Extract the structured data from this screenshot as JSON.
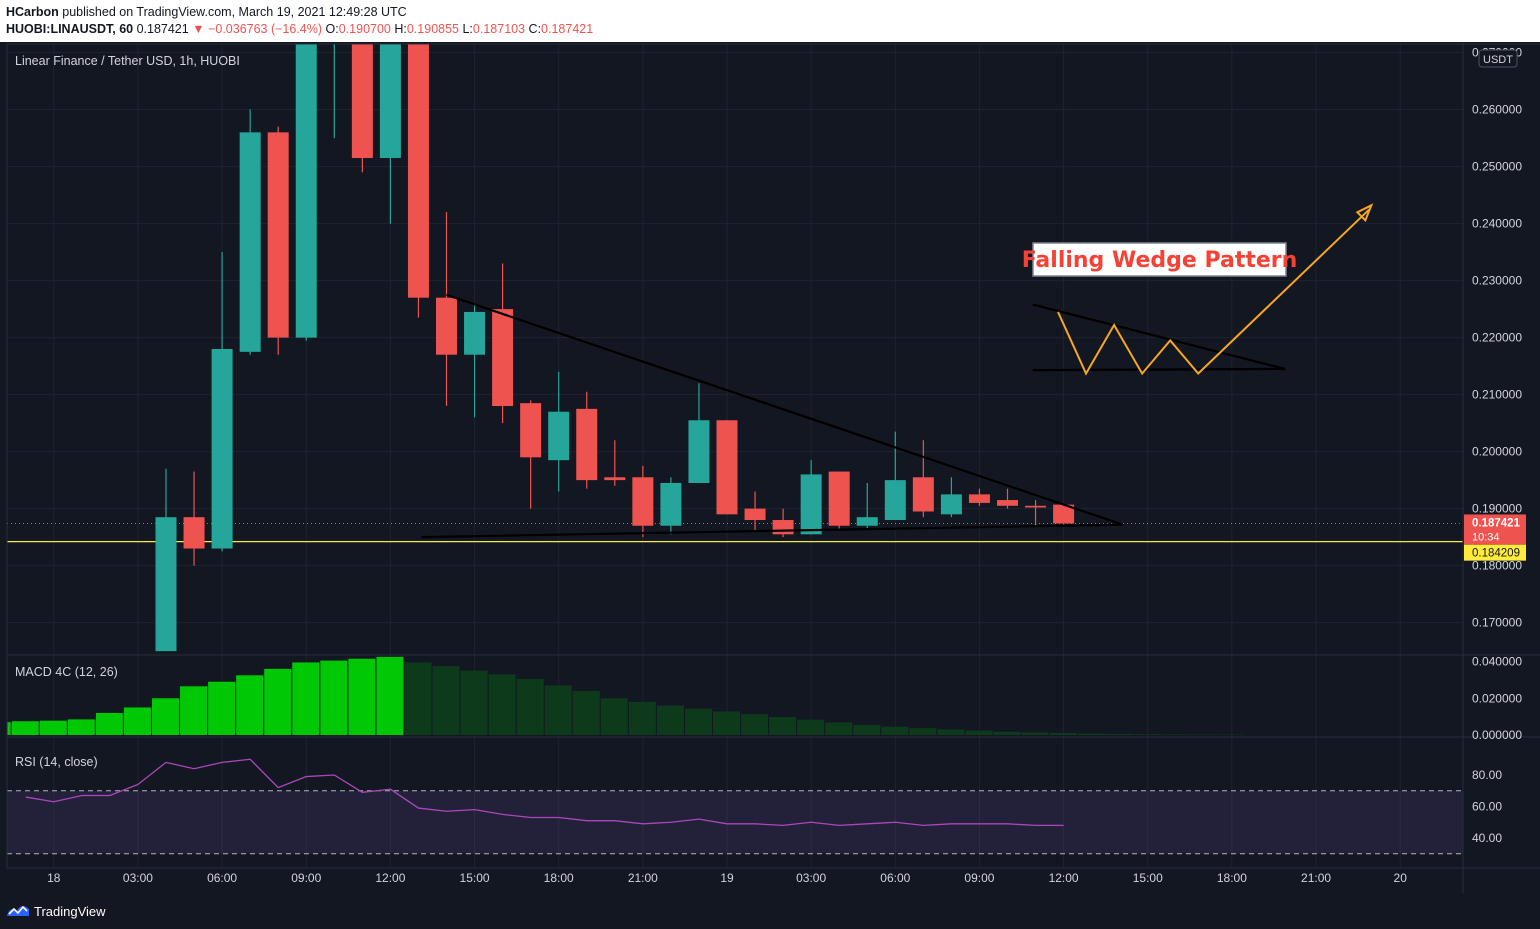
{
  "header": {
    "author": "HCarbon",
    "published_text": "published on TradingView.com, March 19, 2021 12:49:28 UTC",
    "symbol": "HUOBI:LINAUSDT, 60",
    "last": "0.187421",
    "change": "−0.036763 (−16.4%)",
    "o_label": "O:",
    "o_value": "0.190700",
    "h_label": "H:",
    "h_value": "0.190855",
    "l_label": "L:",
    "l_value": "0.187103",
    "c_label": "C:",
    "c_value": "0.187421"
  },
  "footer": {
    "brand": "TradingView"
  },
  "chart_data": {
    "type": "candlestick",
    "title": "Linear Finance / Tether USD, 1h, HUOBI",
    "currency_badge": "USDT",
    "y_ticks": [
      "0.170000",
      "0.180000",
      "0.190000",
      "0.200000",
      "0.210000",
      "0.220000",
      "0.230000",
      "0.240000",
      "0.250000",
      "0.260000",
      "0.270000"
    ],
    "ylim": [
      0.1645,
      0.2715
    ],
    "x_ticks": [
      "18",
      "03:00",
      "06:00",
      "09:00",
      "12:00",
      "15:00",
      "18:00",
      "21:00",
      "19",
      "03:00",
      "06:00",
      "09:00",
      "12:00",
      "15:00",
      "18:00",
      "21:00",
      "20"
    ],
    "x_tick_index": [
      -4,
      -1,
      2,
      5,
      8,
      11,
      14,
      17,
      20,
      23,
      26,
      29,
      32,
      35,
      38,
      41,
      44
    ],
    "candles": [
      {
        "o": 0.165,
        "h": 0.197,
        "l": 0.165,
        "c": 0.1885
      },
      {
        "o": 0.1885,
        "h": 0.1965,
        "l": 0.18,
        "c": 0.183
      },
      {
        "o": 0.183,
        "h": 0.235,
        "l": 0.1825,
        "c": 0.218
      },
      {
        "o": 0.2175,
        "h": 0.26,
        "l": 0.217,
        "c": 0.256
      },
      {
        "o": 0.256,
        "h": 0.257,
        "l": 0.217,
        "c": 0.22
      },
      {
        "o": 0.22,
        "h": 0.28,
        "l": 0.2195,
        "c": 0.28
      },
      {
        "o": 0.28,
        "h": 0.285,
        "l": 0.255,
        "c": 0.28
      },
      {
        "o": 0.28,
        "h": 0.28,
        "l": 0.249,
        "c": 0.2515
      },
      {
        "o": 0.2515,
        "h": 0.28,
        "l": 0.24,
        "c": 0.28
      },
      {
        "o": 0.28,
        "h": 0.28,
        "l": 0.2235,
        "c": 0.227
      },
      {
        "o": 0.227,
        "h": 0.242,
        "l": 0.208,
        "c": 0.217
      },
      {
        "o": 0.217,
        "h": 0.226,
        "l": 0.206,
        "c": 0.2245
      },
      {
        "o": 0.225,
        "h": 0.233,
        "l": 0.205,
        "c": 0.208
      },
      {
        "o": 0.2085,
        "h": 0.209,
        "l": 0.19,
        "c": 0.199
      },
      {
        "o": 0.1985,
        "h": 0.214,
        "l": 0.193,
        "c": 0.207
      },
      {
        "o": 0.2075,
        "h": 0.2105,
        "l": 0.1935,
        "c": 0.195
      },
      {
        "o": 0.1955,
        "h": 0.202,
        "l": 0.194,
        "c": 0.195
      },
      {
        "o": 0.1955,
        "h": 0.1975,
        "l": 0.185,
        "c": 0.187
      },
      {
        "o": 0.187,
        "h": 0.1955,
        "l": 0.1855,
        "c": 0.1945
      },
      {
        "o": 0.1945,
        "h": 0.212,
        "l": 0.1945,
        "c": 0.2055
      },
      {
        "o": 0.2055,
        "h": 0.2055,
        "l": 0.189,
        "c": 0.189
      },
      {
        "o": 0.19,
        "h": 0.193,
        "l": 0.186,
        "c": 0.188
      },
      {
        "o": 0.188,
        "h": 0.19,
        "l": 0.185,
        "c": 0.1855
      },
      {
        "o": 0.1855,
        "h": 0.1985,
        "l": 0.1855,
        "c": 0.196
      },
      {
        "o": 0.1965,
        "h": 0.1965,
        "l": 0.1865,
        "c": 0.187
      },
      {
        "o": 0.187,
        "h": 0.1945,
        "l": 0.1865,
        "c": 0.1885
      },
      {
        "o": 0.188,
        "h": 0.2035,
        "l": 0.188,
        "c": 0.195
      },
      {
        "o": 0.1955,
        "h": 0.202,
        "l": 0.1885,
        "c": 0.1895
      },
      {
        "o": 0.189,
        "h": 0.1955,
        "l": 0.1885,
        "c": 0.1925
      },
      {
        "o": 0.1925,
        "h": 0.1935,
        "l": 0.1905,
        "c": 0.191
      },
      {
        "o": 0.1915,
        "h": 0.1935,
        "l": 0.19,
        "c": 0.1905
      },
      {
        "o": 0.1905,
        "h": 0.1915,
        "l": 0.187,
        "c": 0.1902
      },
      {
        "o": 0.1907,
        "h": 0.1909,
        "l": 0.1871,
        "c": 0.1874
      }
    ],
    "last_price_label": "0.187421",
    "countdown_label": "10:34",
    "support_value": 0.184209,
    "support_label": "0.184209",
    "annotation": "Falling Wedge Pattern",
    "macd": {
      "title": "MACD 4C (12, 26)",
      "y_ticks": [
        "0.000000",
        "0.020000",
        "0.040000"
      ],
      "ylim": [
        0,
        0.043
      ],
      "values": [
        0.007,
        0.0075,
        0.0078,
        0.0085,
        0.012,
        0.015,
        0.02,
        0.0265,
        0.029,
        0.0325,
        0.036,
        0.0395,
        0.0405,
        0.0415,
        0.0425,
        0.0395,
        0.0375,
        0.035,
        0.033,
        0.0305,
        0.027,
        0.024,
        0.02,
        0.018,
        0.016,
        0.0143,
        0.0128,
        0.0113,
        0.0098,
        0.0083,
        0.0068,
        0.0055,
        0.0045,
        0.0037,
        0.003,
        0.0024,
        0.0018,
        0.0014,
        0.0011,
        0.0008,
        0.0006,
        0.0004,
        0.0003,
        0.0002,
        0.0002
      ]
    },
    "rsi": {
      "title": "RSI (14, close)",
      "y_ticks": [
        "40.00",
        "60.00",
        "80.00"
      ],
      "band": [
        30,
        70
      ],
      "values": [
        66,
        63,
        67,
        67,
        74,
        88,
        84,
        88,
        90,
        72,
        79,
        80,
        69,
        71,
        59,
        57,
        58,
        55,
        53,
        53,
        51,
        51,
        49,
        50,
        52,
        49,
        49,
        48,
        50,
        48,
        49,
        50,
        48,
        49,
        49,
        49,
        48,
        48
      ]
    }
  }
}
